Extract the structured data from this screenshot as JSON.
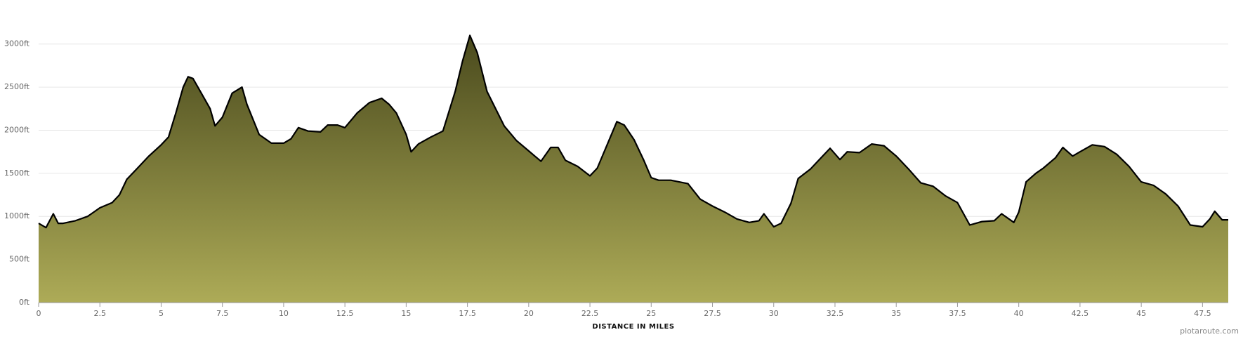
{
  "chart_data": {
    "type": "area",
    "x_label": "DISTANCE IN MILES",
    "credit": "plotaroute.com",
    "line_color": "#000000",
    "fill_colors": [
      "#4a4a1d",
      "#adab57"
    ],
    "grid": true,
    "xlim": [
      0,
      48.55
    ],
    "ylim": [
      0,
      3250
    ],
    "xticks": [
      0,
      2.5,
      5,
      7.5,
      10,
      12.5,
      15,
      17.5,
      20,
      22.5,
      25,
      27.5,
      30,
      32.5,
      35,
      37.5,
      40,
      42.5,
      45,
      47.5
    ],
    "yticks": [
      {
        "value": 0,
        "label": "0ft"
      },
      {
        "value": 500,
        "label": "500ft"
      },
      {
        "value": 1000,
        "label": "1000ft"
      },
      {
        "value": 1500,
        "label": "1500ft"
      },
      {
        "value": 2000,
        "label": "2000ft"
      },
      {
        "value": 2500,
        "label": "2500ft"
      },
      {
        "value": 3000,
        "label": "3000ft"
      }
    ],
    "x": [
      0,
      0.3,
      0.6,
      0.8,
      1.0,
      1.5,
      2.0,
      2.5,
      3.0,
      3.3,
      3.6,
      4.0,
      4.5,
      5.0,
      5.3,
      5.6,
      5.9,
      6.1,
      6.3,
      6.7,
      7.0,
      7.2,
      7.5,
      7.9,
      8.3,
      8.5,
      9.0,
      9.5,
      10.0,
      10.3,
      10.6,
      11.0,
      11.5,
      11.8,
      12.2,
      12.5,
      13.0,
      13.5,
      14.0,
      14.3,
      14.6,
      15.0,
      15.2,
      15.5,
      16.0,
      16.5,
      17.0,
      17.3,
      17.6,
      17.9,
      18.3,
      19.0,
      19.5,
      20.0,
      20.5,
      20.9,
      21.2,
      21.5,
      22.0,
      22.5,
      22.8,
      23.2,
      23.6,
      23.9,
      24.3,
      24.7,
      25.0,
      25.3,
      25.8,
      26.5,
      27.0,
      27.5,
      28.0,
      28.5,
      29.0,
      29.4,
      29.6,
      30.0,
      30.3,
      30.7,
      31.0,
      31.5,
      32.0,
      32.3,
      32.7,
      33.0,
      33.5,
      34.0,
      34.5,
      35.0,
      35.5,
      36.0,
      36.5,
      37.0,
      37.5,
      38.0,
      38.5,
      39.0,
      39.3,
      39.8,
      40.0,
      40.3,
      40.7,
      41.0,
      41.5,
      41.8,
      42.2,
      42.5,
      43.0,
      43.5,
      44.0,
      44.5,
      45.0,
      45.5,
      46.0,
      46.5,
      47.0,
      47.5,
      47.8,
      48.0,
      48.3,
      48.55
    ],
    "values": [
      920,
      870,
      1030,
      920,
      920,
      950,
      1000,
      1100,
      1160,
      1250,
      1430,
      1550,
      1700,
      1830,
      1920,
      2200,
      2500,
      2620,
      2600,
      2400,
      2250,
      2050,
      2150,
      2430,
      2500,
      2300,
      1950,
      1850,
      1850,
      1900,
      2030,
      1990,
      1980,
      2060,
      2060,
      2030,
      2200,
      2320,
      2370,
      2300,
      2200,
      1950,
      1750,
      1840,
      1920,
      1990,
      2450,
      2800,
      3100,
      2900,
      2450,
      2050,
      1880,
      1760,
      1640,
      1800,
      1800,
      1650,
      1580,
      1470,
      1560,
      1830,
      2100,
      2060,
      1890,
      1650,
      1450,
      1420,
      1420,
      1380,
      1200,
      1120,
      1050,
      970,
      930,
      950,
      1030,
      880,
      920,
      1150,
      1440,
      1550,
      1700,
      1790,
      1660,
      1750,
      1740,
      1840,
      1820,
      1700,
      1550,
      1390,
      1350,
      1240,
      1160,
      900,
      940,
      950,
      1030,
      930,
      1050,
      1400,
      1500,
      1560,
      1680,
      1800,
      1700,
      1750,
      1830,
      1810,
      1720,
      1580,
      1400,
      1360,
      1260,
      1120,
      900,
      880,
      970,
      1060,
      960,
      960
    ]
  }
}
